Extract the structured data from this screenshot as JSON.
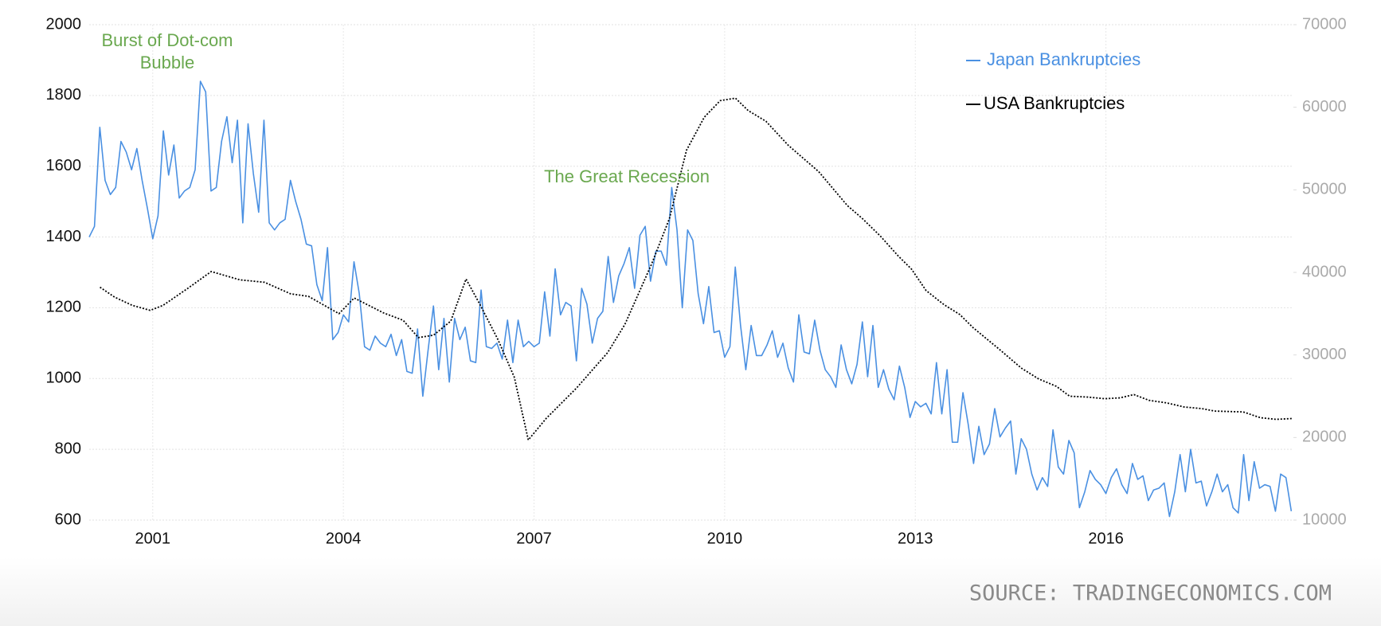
{
  "chart_data": {
    "type": "line",
    "annotations": [
      "Burst of Dot-com Bubble",
      "The Great Recession"
    ],
    "source": "SOURCE: TRADINGECONOMICS.COM",
    "legend": "upper right",
    "grid": true,
    "xlim": [
      2000,
      2018.95
    ],
    "xticks": [
      2001,
      2004,
      2007,
      2010,
      2013,
      2016
    ],
    "ylim": [
      600,
      2000
    ],
    "yticks": [
      600,
      800,
      1000,
      1200,
      1400,
      1600,
      1800,
      2000
    ],
    "y2lim": [
      10000,
      70000
    ],
    "y2ticks": [
      10000,
      20000,
      30000,
      40000,
      50000,
      60000,
      70000
    ],
    "series": [
      {
        "name": "Japan Bankruptcies",
        "color": "#4a90e2",
        "x": [
          2000,
          2000.083,
          2000.167,
          2000.25,
          2000.333,
          2000.417,
          2000.5,
          2000.583,
          2000.667,
          2000.75,
          2000.833,
          2000.917,
          2001,
          2001.083,
          2001.167,
          2001.25,
          2001.333,
          2001.417,
          2001.5,
          2001.583,
          2001.667,
          2001.75,
          2001.833,
          2001.917,
          2002,
          2002.083,
          2002.167,
          2002.25,
          2002.333,
          2002.417,
          2002.5,
          2002.583,
          2002.667,
          2002.75,
          2002.833,
          2002.917,
          2003,
          2003.083,
          2003.167,
          2003.25,
          2003.333,
          2003.417,
          2003.5,
          2003.583,
          2003.667,
          2003.75,
          2003.833,
          2003.917,
          2004,
          2004.083,
          2004.167,
          2004.25,
          2004.333,
          2004.417,
          2004.5,
          2004.583,
          2004.667,
          2004.75,
          2004.833,
          2004.917,
          2005,
          2005.083,
          2005.167,
          2005.25,
          2005.333,
          2005.417,
          2005.5,
          2005.583,
          2005.667,
          2005.75,
          2005.833,
          2005.917,
          2006,
          2006.083,
          2006.167,
          2006.25,
          2006.333,
          2006.417,
          2006.5,
          2006.583,
          2006.667,
          2006.75,
          2006.833,
          2006.917,
          2007,
          2007.083,
          2007.167,
          2007.25,
          2007.333,
          2007.417,
          2007.5,
          2007.583,
          2007.667,
          2007.75,
          2007.833,
          2007.917,
          2008,
          2008.083,
          2008.167,
          2008.25,
          2008.333,
          2008.417,
          2008.5,
          2008.583,
          2008.667,
          2008.75,
          2008.833,
          2008.917,
          2009,
          2009.083,
          2009.167,
          2009.25,
          2009.333,
          2009.417,
          2009.5,
          2009.583,
          2009.667,
          2009.75,
          2009.833,
          2009.917,
          2010,
          2010.083,
          2010.167,
          2010.25,
          2010.333,
          2010.417,
          2010.5,
          2010.583,
          2010.667,
          2010.75,
          2010.833,
          2010.917,
          2011,
          2011.083,
          2011.167,
          2011.25,
          2011.333,
          2011.417,
          2011.5,
          2011.583,
          2011.667,
          2011.75,
          2011.833,
          2011.917,
          2012,
          2012.083,
          2012.167,
          2012.25,
          2012.333,
          2012.417,
          2012.5,
          2012.583,
          2012.667,
          2012.75,
          2012.833,
          2012.917,
          2013,
          2013.083,
          2013.167,
          2013.25,
          2013.333,
          2013.417,
          2013.5,
          2013.583,
          2013.667,
          2013.75,
          2013.833,
          2013.917,
          2014,
          2014.083,
          2014.167,
          2014.25,
          2014.333,
          2014.417,
          2014.5,
          2014.583,
          2014.667,
          2014.75,
          2014.833,
          2014.917,
          2015,
          2015.083,
          2015.167,
          2015.25,
          2015.333,
          2015.417,
          2015.5,
          2015.583,
          2015.667,
          2015.75,
          2015.833,
          2015.917,
          2016,
          2016.083,
          2016.167,
          2016.25,
          2016.333,
          2016.417,
          2016.5,
          2016.583,
          2016.667,
          2016.75,
          2016.833,
          2016.917,
          2017,
          2017.083,
          2017.167,
          2017.25,
          2017.333,
          2017.417,
          2017.5,
          2017.583,
          2017.667,
          2017.75,
          2017.833,
          2017.917,
          2018,
          2018.083,
          2018.167,
          2018.25,
          2018.333,
          2018.417,
          2018.5,
          2018.583,
          2018.667,
          2018.75,
          2018.833,
          2018.917
        ],
        "values": [
          1400,
          1430,
          1710,
          1560,
          1520,
          1540,
          1670,
          1640,
          1590,
          1650,
          1560,
          1480,
          1395,
          1460,
          1700,
          1575,
          1660,
          1510,
          1530,
          1540,
          1590,
          1840,
          1810,
          1530,
          1540,
          1670,
          1740,
          1610,
          1730,
          1440,
          1720,
          1580,
          1470,
          1730,
          1440,
          1420,
          1440,
          1450,
          1560,
          1500,
          1450,
          1380,
          1375,
          1265,
          1220,
          1370,
          1110,
          1130,
          1180,
          1160,
          1330,
          1240,
          1090,
          1080,
          1120,
          1100,
          1090,
          1125,
          1065,
          1110,
          1020,
          1015,
          1140,
          950,
          1080,
          1205,
          1025,
          1170,
          990,
          1170,
          1110,
          1145,
          1050,
          1045,
          1250,
          1090,
          1085,
          1100,
          1055,
          1165,
          1045,
          1165,
          1090,
          1105,
          1090,
          1100,
          1245,
          1120,
          1310,
          1180,
          1215,
          1205,
          1050,
          1255,
          1210,
          1100,
          1170,
          1190,
          1345,
          1215,
          1290,
          1325,
          1370,
          1255,
          1405,
          1430,
          1275,
          1360,
          1360,
          1320,
          1540,
          1420,
          1200,
          1420,
          1390,
          1240,
          1155,
          1260,
          1130,
          1135,
          1060,
          1090,
          1315,
          1150,
          1025,
          1150,
          1065,
          1065,
          1095,
          1135,
          1060,
          1100,
          1030,
          990,
          1180,
          1075,
          1070,
          1165,
          1080,
          1025,
          1005,
          975,
          1095,
          1025,
          985,
          1040,
          1160,
          1005,
          1150,
          975,
          1025,
          970,
          940,
          1035,
          975,
          890,
          935,
          920,
          930,
          900,
          1045,
          900,
          1025,
          820,
          820,
          960,
          870,
          760,
          865,
          785,
          815,
          915,
          835,
          860,
          880,
          730,
          830,
          800,
          730,
          685,
          720,
          695,
          855,
          750,
          730,
          825,
          790,
          635,
          680,
          740,
          715,
          700,
          675,
          720,
          745,
          700,
          675,
          760,
          715,
          725,
          655,
          685,
          690,
          705,
          610,
          680,
          785,
          680,
          800,
          705,
          710,
          640,
          680,
          730,
          680,
          700,
          635,
          620,
          785,
          655,
          765,
          690,
          700,
          695,
          625,
          730,
          720,
          625
        ]
      },
      {
        "name": "USA Bankruptcies",
        "color": "#000000",
        "axis": "y2",
        "x": [
          2000.17,
          2000.4,
          2000.68,
          2000.96,
          2001.16,
          2001.54,
          2001.92,
          2002.37,
          2002.76,
          2003.17,
          2003.45,
          2003.93,
          2004.17,
          2004.63,
          2004.94,
          2005.18,
          2005.42,
          2005.69,
          2005.93,
          2006.15,
          2006.43,
          2006.69,
          2006.91,
          2007.19,
          2007.67,
          2008.16,
          2008.43,
          2008.85,
          2009.13,
          2009.4,
          2009.68,
          2009.93,
          2010.17,
          2010.37,
          2010.65,
          2011,
          2011.48,
          2011.93,
          2012.17,
          2012.45,
          2012.73,
          2012.94,
          2013.17,
          2013.45,
          2013.7,
          2013.91,
          2014.32,
          2014.67,
          2014.94,
          2015.22,
          2015.43,
          2015.71,
          2015.98,
          2016.22,
          2016.44,
          2016.68,
          2016.95,
          2017.23,
          2017.51,
          2017.71,
          2018.16,
          2018.43,
          2018.68,
          2018.93
        ],
        "values": [
          38200,
          37000,
          36000,
          35400,
          36000,
          38000,
          40100,
          39100,
          38800,
          37400,
          37100,
          35000,
          36900,
          35100,
          34200,
          32100,
          32400,
          34100,
          39200,
          36100,
          31900,
          27300,
          19700,
          22300,
          26000,
          30300,
          33700,
          41000,
          46500,
          54800,
          58800,
          60800,
          61100,
          59600,
          58300,
          55400,
          52200,
          48100,
          46500,
          44400,
          42000,
          40400,
          37800,
          36100,
          34900,
          33300,
          30700,
          28400,
          27100,
          26200,
          25000,
          24900,
          24700,
          24800,
          25200,
          24500,
          24200,
          23700,
          23500,
          23200,
          23100,
          22400,
          22200,
          22300
        ]
      }
    ]
  }
}
